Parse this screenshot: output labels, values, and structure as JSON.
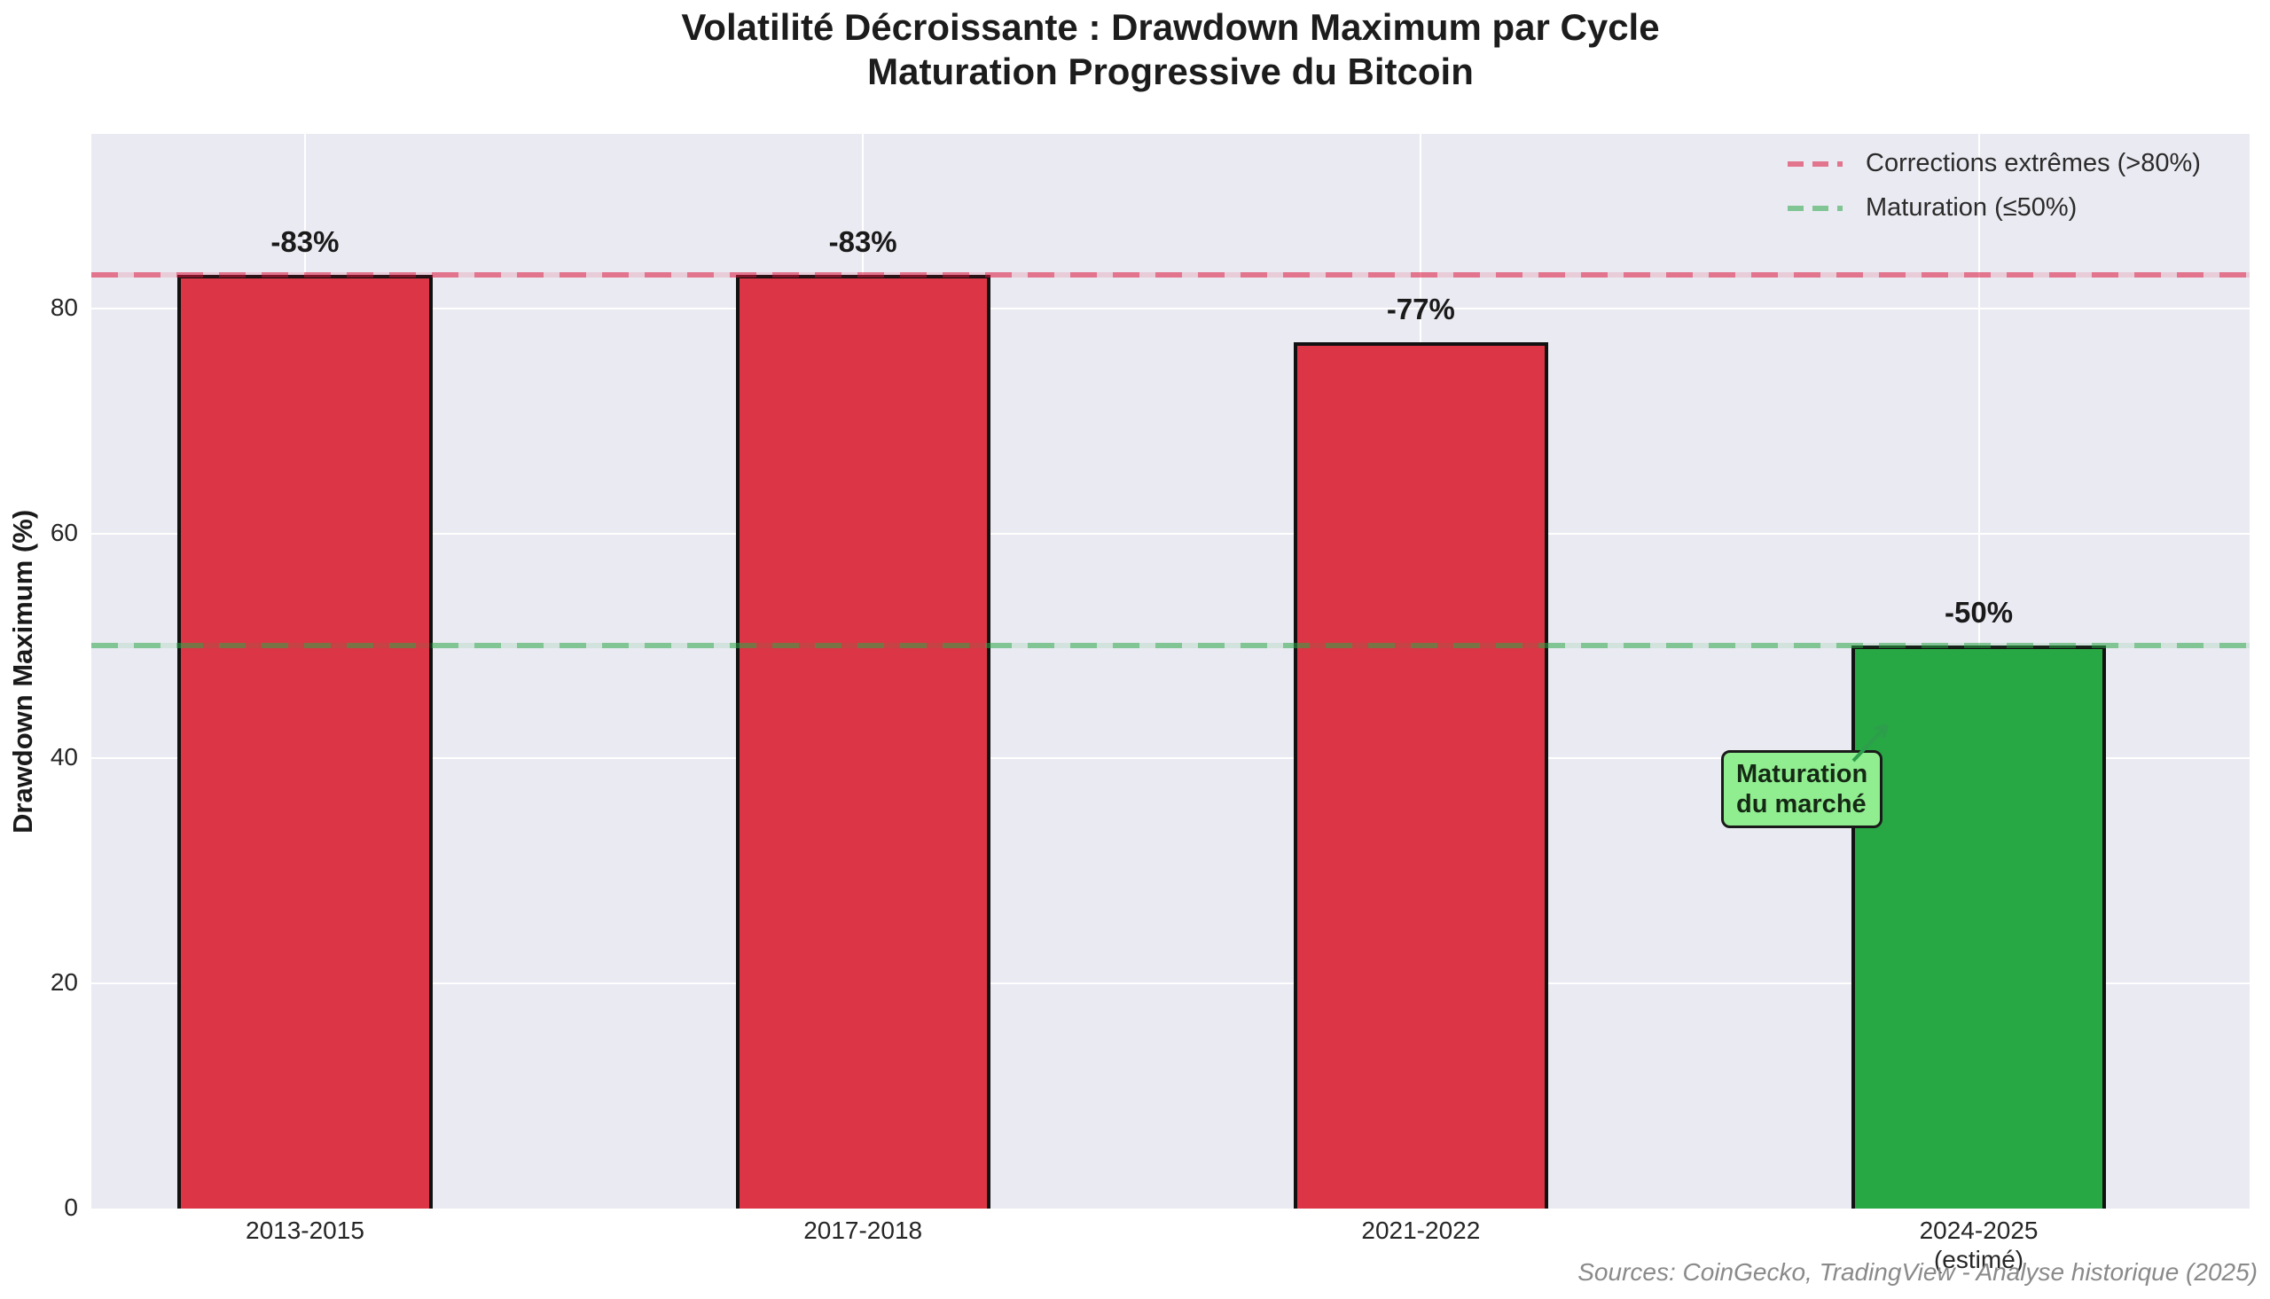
{
  "title": {
    "line1": "Volatilité Décroissante : Drawdown Maximum par Cycle",
    "line2": "Maturation Progressive du Bitcoin"
  },
  "axes": {
    "ylabel": "Drawdown Maximum (%)"
  },
  "legend": {
    "position": "upper right",
    "items": [
      {
        "label": "Corrections extrêmes (>80%)",
        "color": "rgba(220,20,60,0.55)"
      },
      {
        "label": "Maturation (≤50%)",
        "color": "rgba(40,167,69,0.55)"
      }
    ]
  },
  "annotation": {
    "line1": "Maturation",
    "line2": "du marché",
    "bg_color": "#90ee90",
    "arrow_color": "#2d9e4c"
  },
  "source_note": "Sources: CoinGecko, TradingView - Analyse historique (2025)",
  "chart_data": {
    "type": "bar",
    "title": "Volatilité Décroissante : Drawdown Maximum par Cycle — Maturation Progressive du Bitcoin",
    "categories": [
      "2013-2015",
      "2017-2018",
      "2021-2022",
      "2024-2025\n(estimé)"
    ],
    "values": [
      83,
      83,
      77,
      50
    ],
    "bar_labels": [
      "-83%",
      "-83%",
      "-77%",
      "-50%"
    ],
    "bar_colors": [
      "#dc3545",
      "#dc3545",
      "#dc3545",
      "#28a745"
    ],
    "bar_edge_color": "#111111",
    "xlabel": "",
    "ylabel": "Drawdown Maximum (%)",
    "ylim": [
      0,
      95.5
    ],
    "yticks": [
      0,
      20,
      40,
      60,
      80
    ],
    "grid": true,
    "plot_background": "#eaeaf2",
    "thresholds": [
      {
        "value": 83,
        "label": "Corrections extrêmes (>80%)",
        "color": "rgba(220,20,60,0.55)",
        "halo": "rgba(220,20,60,0.14)"
      },
      {
        "value": 50,
        "label": "Maturation (≤50%)",
        "color": "rgba(40,167,69,0.55)",
        "halo": "rgba(40,167,69,0.12)"
      }
    ],
    "legend_position": "upper right"
  }
}
